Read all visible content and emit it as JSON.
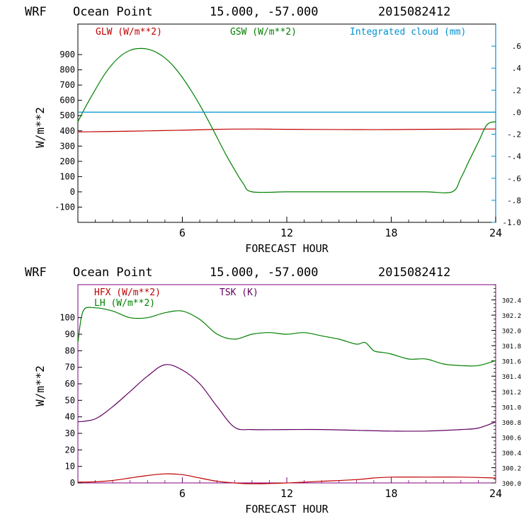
{
  "figure": {
    "panel1_title": {
      "model": "WRF",
      "location": "Ocean Point",
      "coords": "15.000, -57.000",
      "run": "2015082412"
    },
    "panel2_title": {
      "model": "WRF",
      "location": "Ocean Point",
      "coords": "15.000, -57.000",
      "run": "2015082412"
    }
  },
  "colors": {
    "red": "#c00000",
    "green": "#008000",
    "blue": "#0090d0",
    "purple": "#600060",
    "axis_top": "#000000",
    "axis_bottom": "#800080"
  },
  "chart_data": [
    {
      "type": "line",
      "title": "WRF   Ocean Point   15.000, -57.000  2015082412",
      "xlabel": "FORECAST HOUR",
      "ylabel": "W/m**2",
      "xlim": [
        0,
        24
      ],
      "xticks": [
        6,
        12,
        18,
        24
      ],
      "xtick_labels": [
        "6",
        "12",
        "18",
        "24"
      ],
      "ylim": [
        -200,
        1100
      ],
      "yticks": [
        -100,
        0,
        100,
        200,
        300,
        400,
        500,
        600,
        700,
        800,
        900
      ],
      "ytick_labels": [
        "-100",
        "0",
        "100",
        "200",
        "300",
        "400",
        "500",
        "600",
        "700",
        "800",
        "900"
      ],
      "y2lim": [
        -1.0,
        0.8
      ],
      "y2ticks": [
        -1.0,
        -0.8,
        -0.6,
        -0.4,
        -0.2,
        0.0,
        0.2,
        0.4,
        0.6
      ],
      "y2tick_labels": [
        "-1.0",
        "-.8",
        "-.6",
        "-.4",
        "-.2",
        ".0",
        ".2",
        ".4",
        ".6"
      ],
      "legend": [
        "GLW (W/m**2)",
        "GSW (W/m**2)",
        "Integrated cloud (mm)"
      ],
      "series": [
        {
          "name": "GLW (W/m**2)",
          "axis": "left",
          "x": [
            0,
            2,
            4,
            6,
            8,
            10,
            12,
            14,
            16,
            18,
            20,
            22,
            24
          ],
          "values": [
            393,
            396,
            400,
            404,
            410,
            412,
            410,
            409,
            408,
            408,
            410,
            411,
            412
          ]
        },
        {
          "name": "GSW (W/m**2)",
          "axis": "left",
          "x": [
            0,
            0.5,
            1,
            1.5,
            2,
            2.5,
            3,
            3.5,
            4,
            4.5,
            5,
            5.5,
            6,
            6.5,
            7,
            7.5,
            8,
            8.5,
            9,
            9.5,
            10,
            12,
            14,
            16,
            18,
            20,
            21.5,
            22,
            22.5,
            23,
            23.5,
            24
          ],
          "values": [
            460,
            570,
            670,
            765,
            840,
            895,
            928,
            940,
            936,
            915,
            878,
            823,
            750,
            665,
            570,
            465,
            355,
            245,
            145,
            55,
            0,
            0,
            0,
            0,
            0,
            0,
            0,
            90,
            210,
            325,
            440,
            460
          ]
        },
        {
          "name": "Integrated cloud (mm)",
          "axis": "right",
          "x": [
            0,
            24
          ],
          "values": [
            0.0,
            0.0
          ]
        }
      ]
    },
    {
      "type": "line",
      "title": "WRF   Ocean Point   15.000, -57.000  2015082412",
      "xlabel": "FORECAST HOUR",
      "ylabel": "W/m**2",
      "xlim": [
        0,
        24
      ],
      "xticks": [
        6,
        12,
        18,
        24
      ],
      "xtick_labels": [
        "6",
        "12",
        "18",
        "24"
      ],
      "ylim": [
        0,
        120
      ],
      "yticks": [
        0,
        10,
        20,
        30,
        40,
        50,
        60,
        70,
        80,
        90,
        100
      ],
      "ytick_labels": [
        "0",
        "10",
        "20",
        "30",
        "40",
        "50",
        "60",
        "70",
        "80",
        "90",
        "100"
      ],
      "y2lim": [
        300.0,
        302.6
      ],
      "y2ticks": [
        300.0,
        300.2,
        300.4,
        300.6,
        300.8,
        301.0,
        301.2,
        301.4,
        301.6,
        301.8,
        302.0,
        302.2,
        302.4
      ],
      "y2tick_labels": [
        "300.0",
        "300.2",
        "300.4",
        "300.6",
        "300.8",
        "301.0",
        "301.2",
        "301.4",
        "301.6",
        "301.8",
        "302.0",
        "302.2",
        "302.4"
      ],
      "legend": [
        "HFX (W/m**2)",
        "LH (W/m**2)",
        "TSK (K)"
      ],
      "series": [
        {
          "name": "HFX (W/m**2)",
          "axis": "left",
          "x": [
            0,
            1,
            2,
            3,
            4,
            5,
            6,
            7,
            8,
            9,
            10,
            12,
            14,
            16,
            17,
            18,
            20,
            22,
            24
          ],
          "values": [
            0.5,
            0.7,
            1.5,
            3,
            4.5,
            5.5,
            5,
            3,
            1,
            0,
            -0.5,
            0,
            1,
            2,
            3,
            3.5,
            3.5,
            3.5,
            3
          ]
        },
        {
          "name": "LH (W/m**2)",
          "axis": "left",
          "x": [
            0,
            0.3,
            1,
            2,
            3,
            4,
            5,
            6,
            7,
            8,
            9,
            10,
            11,
            12,
            13,
            14,
            15,
            16,
            16.5,
            17,
            17.5,
            18,
            19,
            20,
            21,
            22,
            23,
            24
          ],
          "values": [
            85,
            104,
            106,
            104,
            100,
            100,
            103,
            104,
            99,
            90,
            87,
            90,
            91,
            90,
            91,
            89,
            87,
            84,
            85,
            80,
            79,
            78,
            75,
            75,
            72,
            71,
            71,
            74
          ]
        },
        {
          "name": "TSK (K)",
          "axis": "right",
          "x": [
            0,
            1,
            2,
            3,
            4,
            5,
            6,
            7,
            8,
            9,
            10,
            12,
            14,
            16,
            18,
            20,
            22,
            23,
            24
          ],
          "values": [
            300.8,
            300.84,
            301.0,
            301.2,
            301.4,
            301.55,
            301.48,
            301.3,
            301.0,
            300.73,
            300.7,
            300.7,
            300.7,
            300.69,
            300.68,
            300.68,
            300.7,
            300.72,
            300.8
          ]
        }
      ]
    }
  ]
}
